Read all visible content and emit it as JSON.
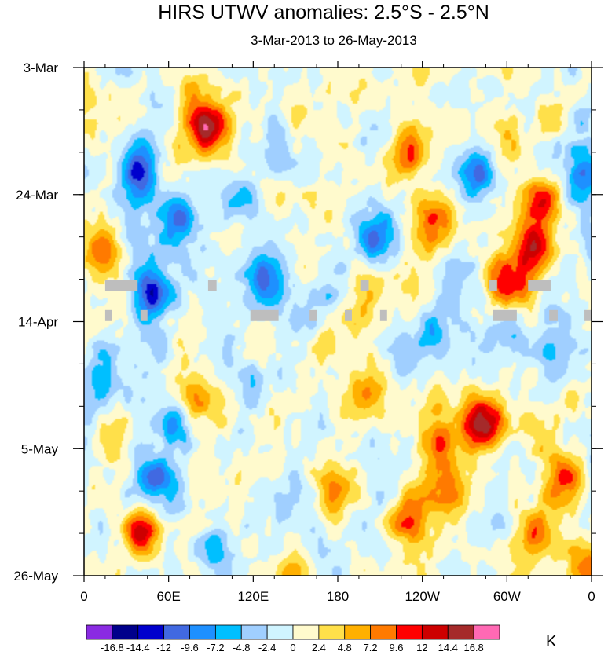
{
  "chart_data": {
    "type": "heatmap",
    "title": "HIRS UTWV anomalies: 2.5°S - 2.5°N",
    "subtitle": "3-Mar-2013 to 26-May-2013",
    "x_ticks": [
      "0",
      "60E",
      "120E",
      "180",
      "120W",
      "60W",
      "0"
    ],
    "x_tick_values": [
      0,
      60,
      120,
      180,
      240,
      300,
      360
    ],
    "xlim": [
      0,
      360
    ],
    "y_ticks": [
      "3-Mar",
      "24-Mar",
      "14-Apr",
      "5-May",
      "26-May"
    ],
    "y_tick_values": [
      "2013-03-03",
      "2013-03-24",
      "2013-04-14",
      "2013-05-05",
      "2013-05-26"
    ],
    "ylim": [
      "2013-03-03",
      "2013-05-26"
    ],
    "colorbar": {
      "levels": [
        "-16.8",
        "-14.4",
        "-12",
        "-9.6",
        "-7.2",
        "-4.8",
        "-2.4",
        "0",
        "2.4",
        "4.8",
        "7.2",
        "9.6",
        "12",
        "14.4",
        "16.8"
      ],
      "colors": [
        "#8a2be2",
        "#00008b",
        "#0000cd",
        "#4169e1",
        "#1e90ff",
        "#00bfff",
        "#a0cfff",
        "#d0f4ff",
        "#fffacd",
        "#ffe04a",
        "#ffb000",
        "#ff7a00",
        "#ff0000",
        "#cd0000",
        "#a52a2a",
        "#ff69b4"
      ],
      "unit": "K"
    },
    "missing_color": "#bebebe",
    "features": [
      {
        "lon": 85,
        "day": 10,
        "value": 14
      },
      {
        "lon": 40,
        "day": 77,
        "value": 15
      },
      {
        "lon": 155,
        "day": 8,
        "value": 8
      },
      {
        "lon": 230,
        "day": 14,
        "value": 10
      },
      {
        "lon": 300,
        "day": 12,
        "value": 7
      },
      {
        "lon": 250,
        "day": 25,
        "value": 9
      },
      {
        "lon": 320,
        "day": 30,
        "value": 12
      },
      {
        "lon": 325,
        "day": 22,
        "value": 13
      },
      {
        "lon": 300,
        "day": 35,
        "value": 11
      },
      {
        "lon": 15,
        "day": 31,
        "value": 8
      },
      {
        "lon": 200,
        "day": 38,
        "value": 8
      },
      {
        "lon": 290,
        "day": 58,
        "value": 12
      },
      {
        "lon": 250,
        "day": 62,
        "value": 8
      },
      {
        "lon": 280,
        "day": 60,
        "value": 9
      },
      {
        "lon": 200,
        "day": 52,
        "value": 6
      },
      {
        "lon": 180,
        "day": 70,
        "value": 10
      },
      {
        "lon": 230,
        "day": 74,
        "value": 9
      },
      {
        "lon": 260,
        "day": 70,
        "value": 8
      },
      {
        "lon": 340,
        "day": 68,
        "value": 8
      },
      {
        "lon": 80,
        "day": 55,
        "value": 6
      },
      {
        "lon": 150,
        "day": 82,
        "value": 6
      },
      {
        "lon": 355,
        "day": 83,
        "value": 9
      },
      {
        "lon": 20,
        "day": 62,
        "value": 5
      },
      {
        "lon": 320,
        "day": 78,
        "value": 7
      },
      {
        "lon": 110,
        "day": 68,
        "value": 5
      },
      {
        "lon": 40,
        "day": 17,
        "value": -12
      },
      {
        "lon": 65,
        "day": 24,
        "value": -10
      },
      {
        "lon": 45,
        "day": 37,
        "value": -12
      },
      {
        "lon": 65,
        "day": 59,
        "value": -11
      },
      {
        "lon": 50,
        "day": 68,
        "value": -9
      },
      {
        "lon": 130,
        "day": 35,
        "value": -9
      },
      {
        "lon": 160,
        "day": 8,
        "value": -6
      },
      {
        "lon": 205,
        "day": 28,
        "value": -9
      },
      {
        "lon": 280,
        "day": 17,
        "value": -9
      },
      {
        "lon": 355,
        "day": 18,
        "value": -7
      },
      {
        "lon": 110,
        "day": 22,
        "value": -6
      },
      {
        "lon": 135,
        "day": 15,
        "value": -5
      },
      {
        "lon": 250,
        "day": 45,
        "value": -5
      },
      {
        "lon": 15,
        "day": 52,
        "value": -6
      },
      {
        "lon": 330,
        "day": 48,
        "value": -6
      },
      {
        "lon": 120,
        "day": 52,
        "value": -4
      },
      {
        "lon": 210,
        "day": 10,
        "value": -5
      },
      {
        "lon": 300,
        "day": 42,
        "value": -5
      },
      {
        "lon": 95,
        "day": 78,
        "value": -5
      },
      {
        "lon": 350,
        "day": 60,
        "value": -4
      }
    ],
    "missing_segments": [
      {
        "lon0": 15,
        "lon1": 38,
        "day": 36
      },
      {
        "lon0": 88,
        "lon1": 94,
        "day": 36
      },
      {
        "lon0": 196,
        "lon1": 202,
        "day": 36
      },
      {
        "lon0": 287,
        "lon1": 293,
        "day": 36
      },
      {
        "lon0": 315,
        "lon1": 331,
        "day": 36
      },
      {
        "lon0": 15,
        "lon1": 20,
        "day": 41
      },
      {
        "lon0": 40,
        "lon1": 45,
        "day": 41
      },
      {
        "lon0": 118,
        "lon1": 138,
        "day": 41
      },
      {
        "lon0": 160,
        "lon1": 165,
        "day": 41
      },
      {
        "lon0": 185,
        "lon1": 190,
        "day": 41
      },
      {
        "lon0": 210,
        "lon1": 215,
        "day": 41
      },
      {
        "lon0": 290,
        "lon1": 307,
        "day": 41
      },
      {
        "lon0": 330,
        "lon1": 336,
        "day": 41
      },
      {
        "lon0": 355,
        "lon1": 360,
        "day": 41
      }
    ]
  }
}
